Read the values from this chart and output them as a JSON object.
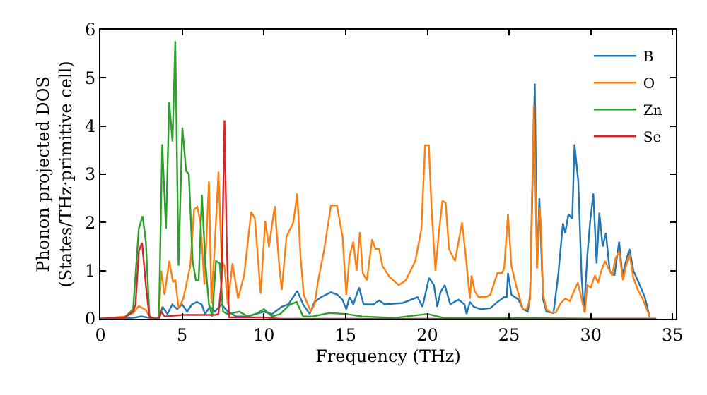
{
  "chart_data": {
    "type": "line",
    "xlabel": "Frequency (THz)",
    "ylabel": "Phonon projected DOS\n(States/THz·primitive cell)",
    "xlim": [
      0,
      35.2
    ],
    "xticks": [
      0,
      5,
      10,
      15,
      20,
      25,
      30,
      35
    ],
    "ylim": [
      0,
      6
    ],
    "yticks": [
      0,
      1,
      2,
      3,
      4,
      5,
      6
    ],
    "legend": "top right",
    "marker": "none",
    "line_style": "solid",
    "series": [
      {
        "name": "B",
        "color": "#1f77b4",
        "x": [
          0,
          2.0,
          2.5,
          3.0,
          3.6,
          3.8,
          4.1,
          4.4,
          4.7,
          5.0,
          5.3,
          5.6,
          5.9,
          6.2,
          6.4,
          6.7,
          7.0,
          7.4,
          7.8,
          8.3,
          9.0,
          9.5,
          10,
          10.5,
          11.09,
          11.5,
          12.04,
          12.4,
          12.8,
          13.1,
          13.5,
          14.1,
          14.5,
          14.8,
          15.04,
          15.24,
          15.47,
          15.82,
          16.1,
          16.7,
          17.05,
          17.4,
          18.5,
          19.4,
          19.7,
          20.1,
          20.4,
          20.6,
          20.8,
          21.06,
          21.4,
          21.9,
          22.27,
          22.4,
          22.6,
          22.84,
          23.27,
          23.85,
          24.28,
          24.7,
          24.85,
          24.93,
          25.14,
          25.57,
          25.85,
          26.14,
          26.28,
          26.57,
          26.71,
          26.85,
          27.08,
          27.28,
          27.71,
          28.0,
          28.29,
          28.43,
          28.63,
          28.86,
          29.0,
          29.23,
          29.43,
          29.58,
          29.78,
          29.95,
          30.15,
          30.35,
          30.52,
          30.72,
          30.92,
          31.15,
          31.44,
          31.73,
          31.93,
          32.15,
          32.36,
          32.6,
          32.93,
          33.3,
          33.6
        ],
        "values": [
          0,
          0.02,
          0.05,
          0.02,
          0,
          0.25,
          0.1,
          0.3,
          0.2,
          0.3,
          0.15,
          0.3,
          0.35,
          0.3,
          0.1,
          0.25,
          0.15,
          0.3,
          0.15,
          0.05,
          0.05,
          0.1,
          0.15,
          0.1,
          0.25,
          0.3,
          0.58,
          0.3,
          0.1,
          0.35,
          0.45,
          0.55,
          0.5,
          0.4,
          0.2,
          0.45,
          0.3,
          0.65,
          0.3,
          0.3,
          0.38,
          0.3,
          0.33,
          0.45,
          0.25,
          0.85,
          0.7,
          0.25,
          0.55,
          0.7,
          0.3,
          0.4,
          0.3,
          0.1,
          0.35,
          0.25,
          0.2,
          0.22,
          0.35,
          0.45,
          0.45,
          0.95,
          0.5,
          0.4,
          0.2,
          0.15,
          0.5,
          4.88,
          1.05,
          2.5,
          0.4,
          0.15,
          0.12,
          0.9,
          1.98,
          1.78,
          2.17,
          2.08,
          3.62,
          2.85,
          0.9,
          0.15,
          1.3,
          2.0,
          2.6,
          1.15,
          2.2,
          1.5,
          1.78,
          1.0,
          0.9,
          1.6,
          0.9,
          1.2,
          1.45,
          1.0,
          0.75,
          0.45,
          0.03
        ]
      },
      {
        "name": "O",
        "color": "#ff7f0e",
        "x": [
          0,
          1.5,
          2.0,
          2.35,
          2.78,
          3.0,
          3.35,
          3.58,
          3.72,
          3.92,
          4.21,
          4.44,
          4.58,
          4.78,
          5.07,
          5.5,
          5.73,
          5.93,
          6.13,
          6.36,
          6.64,
          6.79,
          6.99,
          7.22,
          7.42,
          7.59,
          7.79,
          8.08,
          8.42,
          8.79,
          9.22,
          9.45,
          9.8,
          10.08,
          10.31,
          10.66,
          10.94,
          11.09,
          11.38,
          11.8,
          12.04,
          12.24,
          12.44,
          12.87,
          13.1,
          13.32,
          13.67,
          14.1,
          14.47,
          14.81,
          15.04,
          15.24,
          15.47,
          15.67,
          15.87,
          16.05,
          16.3,
          16.62,
          16.82,
          17.05,
          17.25,
          17.68,
          18.25,
          18.68,
          19.26,
          19.63,
          19.86,
          20.09,
          20.26,
          20.49,
          20.69,
          20.92,
          21.12,
          21.32,
          21.69,
          22.12,
          22.35,
          22.6,
          22.7,
          22.9,
          23.13,
          23.56,
          23.85,
          24.28,
          24.56,
          24.7,
          24.93,
          25.14,
          25.42,
          25.71,
          25.85,
          26.08,
          26.28,
          26.51,
          26.71,
          26.85,
          26.94,
          27.08,
          27.28,
          27.57,
          27.86,
          28.14,
          28.43,
          28.72,
          29.0,
          29.2,
          29.43,
          29.63,
          29.78,
          30.0,
          30.24,
          30.44,
          30.64,
          30.87,
          31.07,
          31.3,
          31.5,
          31.73,
          31.96,
          32.15,
          32.36,
          32.6,
          32.87,
          33.16,
          33.44,
          33.6
        ],
        "values": [
          0,
          0.05,
          0.12,
          0.27,
          0.18,
          0.05,
          0,
          0,
          1.0,
          0.5,
          1.2,
          0.76,
          0.81,
          0.22,
          0.42,
          1.1,
          2.27,
          2.32,
          1.98,
          0.71,
          2.85,
          0.32,
          1.49,
          3.05,
          1.2,
          1.1,
          0.3,
          1.15,
          0.42,
          0.9,
          2.22,
          2.08,
          0.52,
          2.03,
          1.49,
          2.34,
          1.1,
          0.6,
          1.7,
          2.0,
          2.6,
          1.3,
          0.5,
          0.15,
          0.3,
          0.8,
          1.4,
          2.35,
          2.35,
          1.7,
          0.5,
          1.3,
          1.6,
          1.0,
          1.8,
          0.95,
          0.8,
          1.65,
          1.45,
          1.45,
          1.1,
          0.87,
          0.7,
          0.8,
          1.2,
          1.85,
          3.6,
          3.6,
          2.25,
          1.0,
          1.75,
          2.45,
          2.4,
          1.45,
          1.2,
          2.0,
          1.3,
          0.42,
          0.9,
          0.57,
          0.45,
          0.45,
          0.5,
          0.95,
          0.95,
          1.05,
          2.18,
          1.1,
          0.7,
          0.35,
          0.2,
          0.2,
          0.4,
          4.43,
          1.05,
          2.3,
          2.0,
          0.5,
          0.2,
          0.13,
          0.13,
          0.32,
          0.42,
          0.37,
          0.6,
          0.75,
          0.42,
          0.13,
          0.7,
          0.65,
          0.9,
          0.75,
          1.0,
          1.2,
          1.05,
          0.9,
          1.25,
          1.4,
          0.8,
          1.1,
          1.35,
          0.85,
          0.6,
          0.42,
          0.18,
          0.03
        ]
      },
      {
        "name": "Zn",
        "color": "#2ca02c",
        "x": [
          0,
          1.5,
          2.0,
          2.35,
          2.58,
          2.78,
          3.0,
          3.35,
          3.58,
          3.78,
          4.01,
          4.21,
          4.41,
          4.58,
          4.78,
          5.01,
          5.24,
          5.41,
          5.64,
          5.84,
          6.01,
          6.21,
          6.41,
          6.64,
          6.84,
          7.07,
          7.3,
          7.5,
          7.79,
          8.5,
          9.0,
          9.5,
          10,
          10.5,
          11,
          11.6,
          12.0,
          12.4,
          13,
          14,
          15,
          16,
          18,
          20,
          21,
          25,
          30,
          34
        ],
        "values": [
          0,
          0.03,
          0.2,
          1.87,
          2.13,
          1.6,
          0.05,
          0,
          0,
          3.62,
          1.87,
          4.5,
          3.68,
          5.76,
          1.1,
          3.97,
          3.07,
          3.0,
          1.2,
          0.8,
          0.8,
          2.57,
          1.2,
          0.3,
          0.05,
          1.2,
          1.15,
          0.15,
          0.1,
          0.15,
          0.05,
          0.1,
          0.2,
          0.05,
          0.1,
          0.3,
          0.35,
          0.05,
          0.05,
          0.12,
          0.1,
          0.05,
          0.02,
          0.1,
          0.02,
          0.02,
          0,
          0
        ]
      },
      {
        "name": "Se",
        "color": "#d62728",
        "x": [
          0,
          1.5,
          2.0,
          2.15,
          2.35,
          2.55,
          2.78,
          3.0,
          3.35,
          3.58,
          3.72,
          3.92,
          5.0,
          6.0,
          7.0,
          7.22,
          7.42,
          7.59,
          7.73,
          7.87,
          9.0,
          10.0,
          11.0,
          34
        ],
        "values": [
          0,
          0.03,
          0.15,
          0.3,
          1.4,
          1.58,
          0.7,
          0.03,
          0,
          0.02,
          0.15,
          0.05,
          0.08,
          0.08,
          0.08,
          0.1,
          0.8,
          4.12,
          1.5,
          0.03,
          0.03,
          0.03,
          0,
          0
        ]
      }
    ]
  }
}
